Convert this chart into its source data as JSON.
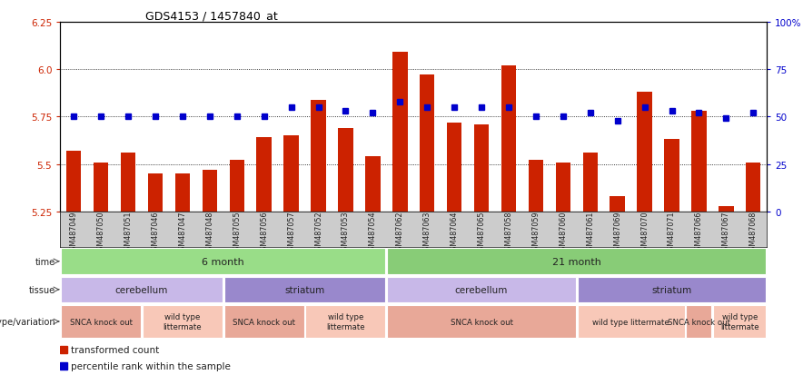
{
  "title": "GDS4153 / 1457840_at",
  "samples": [
    "GSM487049",
    "GSM487050",
    "GSM487051",
    "GSM487046",
    "GSM487047",
    "GSM487048",
    "GSM487055",
    "GSM487056",
    "GSM487057",
    "GSM487052",
    "GSM487053",
    "GSM487054",
    "GSM487062",
    "GSM487063",
    "GSM487064",
    "GSM487065",
    "GSM487058",
    "GSM487059",
    "GSM487060",
    "GSM487061",
    "GSM487069",
    "GSM487070",
    "GSM487071",
    "GSM487066",
    "GSM487067",
    "GSM487068"
  ],
  "red_values": [
    5.57,
    5.51,
    5.56,
    5.45,
    5.45,
    5.47,
    5.52,
    5.64,
    5.65,
    5.84,
    5.69,
    5.54,
    6.09,
    5.97,
    5.72,
    5.71,
    6.02,
    5.52,
    5.51,
    5.56,
    5.33,
    5.88,
    5.63,
    5.78,
    5.28,
    5.51
  ],
  "blue_values": [
    50,
    50,
    50,
    50,
    50,
    50,
    50,
    50,
    55,
    55,
    53,
    52,
    58,
    55,
    55,
    55,
    55,
    50,
    50,
    52,
    48,
    55,
    53,
    52,
    49,
    52
  ],
  "ylim_left": [
    5.25,
    6.25
  ],
  "ylim_right": [
    0,
    100
  ],
  "yticks_left": [
    5.25,
    5.5,
    5.75,
    6.0,
    6.25
  ],
  "yticks_right": [
    0,
    25,
    50,
    75,
    100
  ],
  "ytick_right_labels": [
    "0",
    "25",
    "50",
    "75",
    "100%"
  ],
  "bar_color": "#cc2200",
  "dot_color": "#0000cc",
  "time_groups": [
    {
      "label": "6 month",
      "start": 0,
      "end": 12,
      "color": "#99dd88"
    },
    {
      "label": "21 month",
      "start": 12,
      "end": 26,
      "color": "#88cc77"
    }
  ],
  "tissue_groups": [
    {
      "label": "cerebellum",
      "start": 0,
      "end": 6,
      "color": "#c8b8e8"
    },
    {
      "label": "striatum",
      "start": 6,
      "end": 12,
      "color": "#9988cc"
    },
    {
      "label": "cerebellum",
      "start": 12,
      "end": 19,
      "color": "#c8b8e8"
    },
    {
      "label": "striatum",
      "start": 19,
      "end": 26,
      "color": "#9988cc"
    }
  ],
  "genotype_groups": [
    {
      "label": "SNCA knock out",
      "start": 0,
      "end": 3,
      "color": "#e8a898"
    },
    {
      "label": "wild type\nlittermate",
      "start": 3,
      "end": 6,
      "color": "#f8c8b8"
    },
    {
      "label": "SNCA knock out",
      "start": 6,
      "end": 9,
      "color": "#e8a898"
    },
    {
      "label": "wild type\nlittermate",
      "start": 9,
      "end": 12,
      "color": "#f8c8b8"
    },
    {
      "label": "SNCA knock out",
      "start": 12,
      "end": 19,
      "color": "#e8a898"
    },
    {
      "label": "wild type littermate",
      "start": 19,
      "end": 23,
      "color": "#f8c8b8"
    },
    {
      "label": "SNCA knock out",
      "start": 23,
      "end": 24,
      "color": "#e8a898"
    },
    {
      "label": "wild type\nlittermate",
      "start": 24,
      "end": 26,
      "color": "#f8c8b8"
    }
  ],
  "row_labels": [
    "genotype/variation",
    "tissue",
    "time"
  ],
  "legend_items": [
    {
      "label": "transformed count",
      "color": "#cc2200"
    },
    {
      "label": "percentile rank within the sample",
      "color": "#0000cc"
    }
  ],
  "chart_bg": "#ffffff",
  "xtick_bg": "#cccccc"
}
